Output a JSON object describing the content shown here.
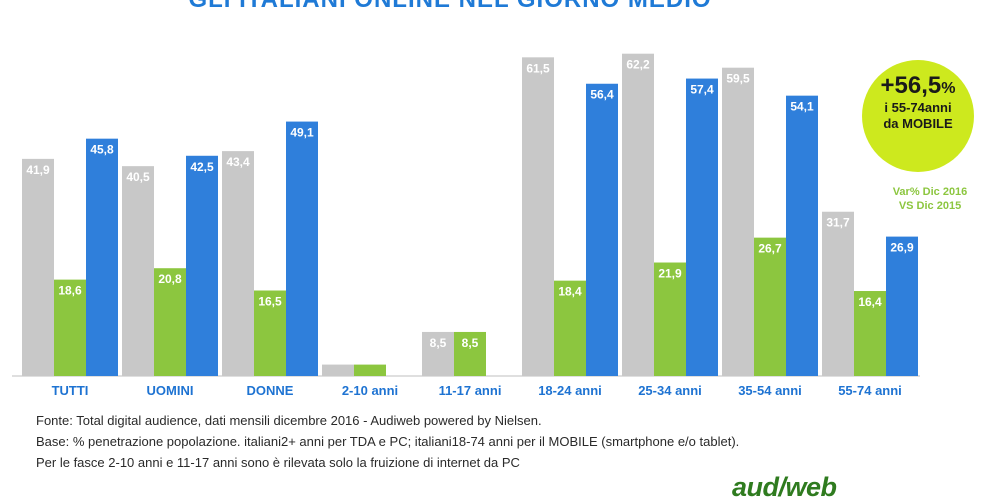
{
  "title": "GLI ITALIANI ONLINE NEL GIORNO MEDIO",
  "colors": {
    "pc": "#c8c8c8",
    "tda": "#8cc63f",
    "mobile": "#2f7fdb",
    "accent": "#1e73d2",
    "badge": "#cde91e"
  },
  "chart_data": {
    "type": "bar",
    "categories": [
      "TUTTI",
      "UOMINI",
      "DONNE",
      "2-10 anni",
      "11-17 anni",
      "18-24 anni",
      "25-34 anni",
      "35-54 anni",
      "55-74 anni"
    ],
    "series": [
      {
        "key": "pc",
        "values": [
          41.9,
          40.5,
          43.4,
          2.2,
          8.5,
          61.5,
          62.2,
          59.5,
          31.7
        ]
      },
      {
        "key": "tda",
        "values": [
          18.6,
          20.8,
          16.5,
          2.2,
          8.5,
          18.4,
          21.9,
          26.7,
          16.4
        ]
      },
      {
        "key": "mobile",
        "values": [
          45.8,
          42.5,
          49.1,
          null,
          null,
          56.4,
          57.4,
          54.1,
          26.9
        ]
      }
    ],
    "labels": {
      "pc": [
        "41,9",
        "40,5",
        "43,4",
        "",
        "8,5",
        "61,5",
        "62,2",
        "59,5",
        "31,7"
      ],
      "tda": [
        "18,6",
        "20,8",
        "16,5",
        "",
        "8,5",
        "18,4",
        "21,9",
        "26,7",
        "16,4"
      ],
      "mobile": [
        "45,8",
        "42,5",
        "49,1",
        "",
        "",
        "56,4",
        "57,4",
        "54,1",
        "26,9"
      ]
    },
    "ylim": [
      0,
      66
    ],
    "grid": false,
    "legend": "none"
  },
  "badge": {
    "big": "+56,5",
    "pct": "%",
    "line1": "i 55-74anni",
    "line2": "da MOBILE"
  },
  "var_note": {
    "line1": "Var% Dic 2016",
    "line2": "VS Dic 2015"
  },
  "footnotes": [
    "Fonte: Total digital audience, dati mensili dicembre 2016 - Audiweb powered by Nielsen.",
    "Base: % penetrazione popolazione. italiani2+ anni per TDA e PC; italiani18-74 anni per il MOBILE (smartphone e/o tablet).",
    "Per le fasce 2-10 anni e 11-17 anni sono è rilevata solo la fruizione di internet da PC"
  ],
  "logo": "aud/web"
}
